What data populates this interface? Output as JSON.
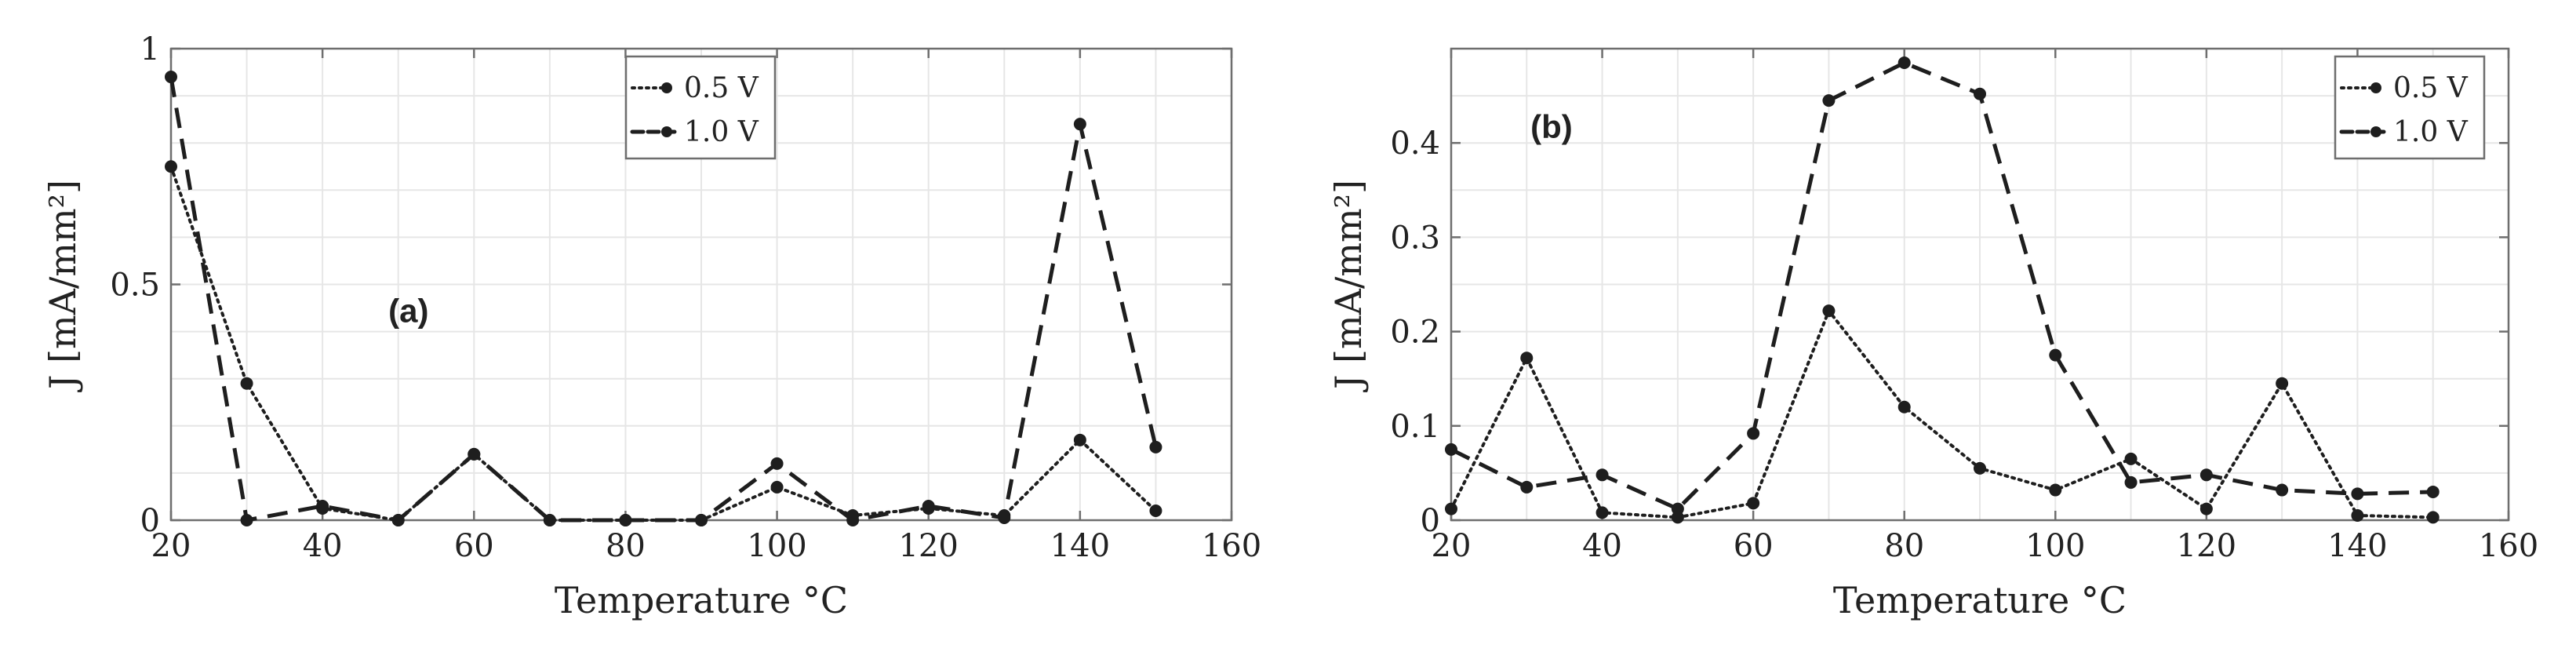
{
  "colors": {
    "line": "#1e1e1e",
    "grid": "#e6e6e6",
    "axis": "#6e6e6e",
    "text": "#222222"
  },
  "chart_data": [
    {
      "type": "line",
      "panel_label": "(a)",
      "xlabel": "Temperature °C",
      "ylabel": "J [mA/mm²]",
      "x_ticks": [
        "20",
        "40",
        "60",
        "80",
        "100",
        "120",
        "140",
        "160"
      ],
      "y_ticks": [
        "0",
        "0.5",
        "1"
      ],
      "xlim": [
        20,
        160
      ],
      "ylim": [
        0,
        1
      ],
      "grid": true,
      "legend_position": "top-center",
      "x": [
        20,
        30,
        40,
        50,
        60,
        70,
        80,
        90,
        100,
        110,
        120,
        130,
        140,
        150
      ],
      "series": [
        {
          "name": "0.5 V",
          "style": "dotted",
          "values": [
            0.75,
            0.29,
            0.025,
            0.0,
            0.14,
            0.0,
            0.0,
            0.0,
            0.07,
            0.01,
            0.025,
            0.01,
            0.17,
            0.02
          ]
        },
        {
          "name": "1.0 V",
          "style": "dashed",
          "values": [
            0.94,
            0.0,
            0.03,
            0.0,
            0.14,
            0.0,
            0.0,
            0.0,
            0.12,
            0.0,
            0.03,
            0.005,
            0.84,
            0.155
          ]
        }
      ]
    },
    {
      "type": "line",
      "panel_label": "(b)",
      "xlabel": "Temperature °C",
      "ylabel": "J [mA/mm²]",
      "x_ticks": [
        "20",
        "40",
        "60",
        "80",
        "100",
        "120",
        "140",
        "160"
      ],
      "y_ticks": [
        "0",
        "0.1",
        "0.2",
        "0.3",
        "0.4"
      ],
      "xlim": [
        20,
        160
      ],
      "ylim": [
        0,
        0.5
      ],
      "grid": true,
      "legend_position": "top-right",
      "x": [
        20,
        30,
        40,
        50,
        60,
        70,
        80,
        90,
        100,
        110,
        120,
        130,
        140,
        150
      ],
      "series": [
        {
          "name": "0.5 V",
          "style": "dotted",
          "values": [
            0.012,
            0.172,
            0.008,
            0.003,
            0.018,
            0.222,
            0.12,
            0.055,
            0.032,
            0.065,
            0.012,
            0.145,
            0.005,
            0.003
          ]
        },
        {
          "name": "1.0 V",
          "style": "dashed",
          "values": [
            0.075,
            0.035,
            0.048,
            0.012,
            0.092,
            0.445,
            0.485,
            0.452,
            0.175,
            0.04,
            0.048,
            0.032,
            0.028,
            0.03
          ]
        }
      ]
    }
  ]
}
